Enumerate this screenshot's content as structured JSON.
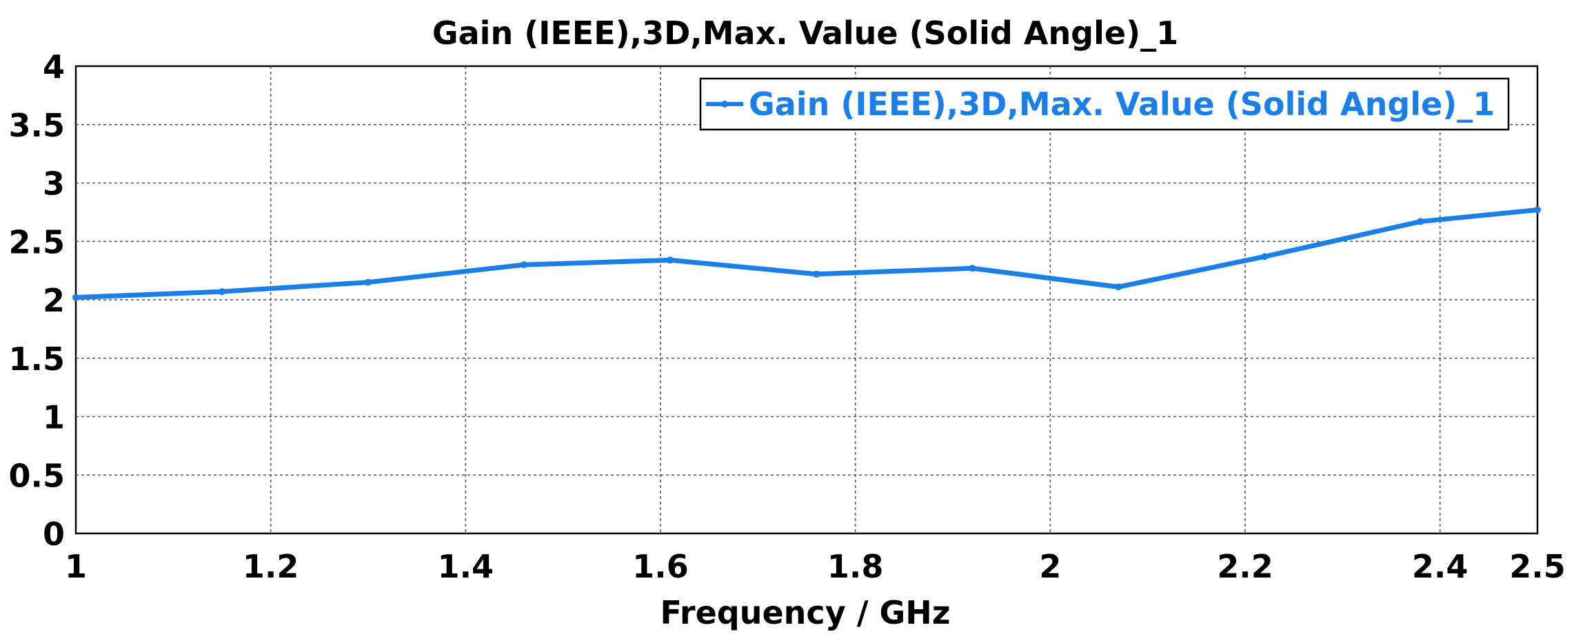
{
  "chart_data": {
    "type": "line",
    "title": "Gain (IEEE),3D,Max. Value (Solid Angle)_1",
    "xlabel": "Frequency / GHz",
    "ylabel": "",
    "xlim": [
      1,
      2.5
    ],
    "ylim": [
      0,
      4
    ],
    "grid": true,
    "legend_position": "top-right",
    "x_ticks": [
      1,
      1.2,
      1.4,
      1.6,
      1.8,
      2,
      2.2,
      2.4,
      2.5
    ],
    "x_tick_labels": [
      "1",
      "1.2",
      "1.4",
      "1.6",
      "1.8",
      "2",
      "2.2",
      "2.4",
      "2.5"
    ],
    "y_ticks": [
      0,
      0.5,
      1,
      1.5,
      2,
      2.5,
      3,
      3.5,
      4
    ],
    "y_tick_labels": [
      "0",
      "0.5",
      "1",
      "1.5",
      "2",
      "2.5",
      "3",
      "3.5",
      "4"
    ],
    "series": [
      {
        "name": "Gain (IEEE),3D,Max. Value (Solid Angle)_1",
        "color": "#1a7fe8",
        "x": [
          1,
          1.15,
          1.3,
          1.46,
          1.61,
          1.76,
          1.92,
          2.07,
          2.22,
          2.38,
          2.5
        ],
        "y": [
          2.02,
          2.07,
          2.15,
          2.3,
          2.34,
          2.22,
          2.27,
          2.11,
          2.37,
          2.67,
          2.77
        ]
      }
    ]
  }
}
